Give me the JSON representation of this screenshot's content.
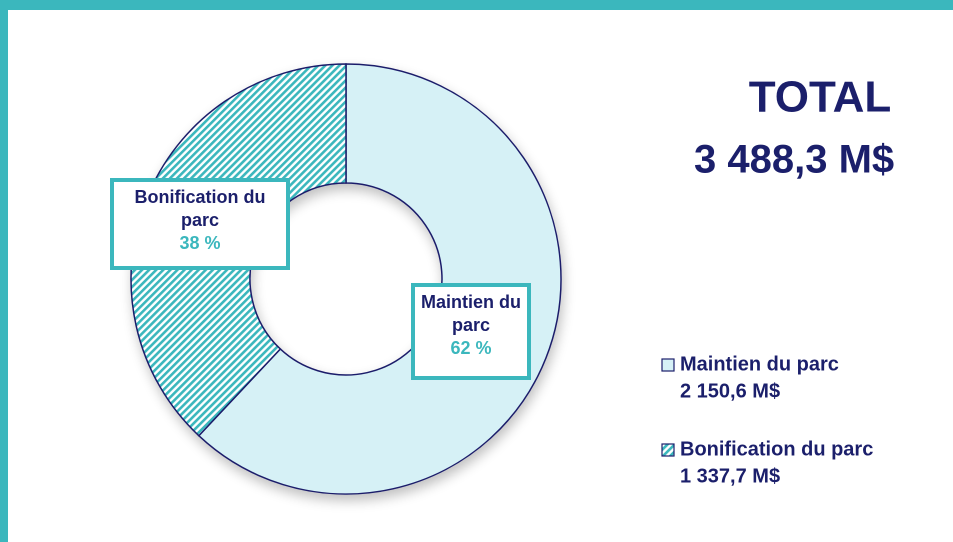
{
  "chart_data": {
    "type": "donut",
    "categories": [
      "Maintien du parc",
      "Bonification du parc"
    ],
    "values": [
      62,
      38
    ],
    "value_labels": [
      "62 %",
      "38 %"
    ],
    "amounts": [
      "2 150,6 M$",
      "1 337,7 M$"
    ],
    "colors": [
      "#d6f1f6",
      "#3bb7bd"
    ],
    "total_title": "TOTAL",
    "total_value": "3 488,3 M$"
  }
}
